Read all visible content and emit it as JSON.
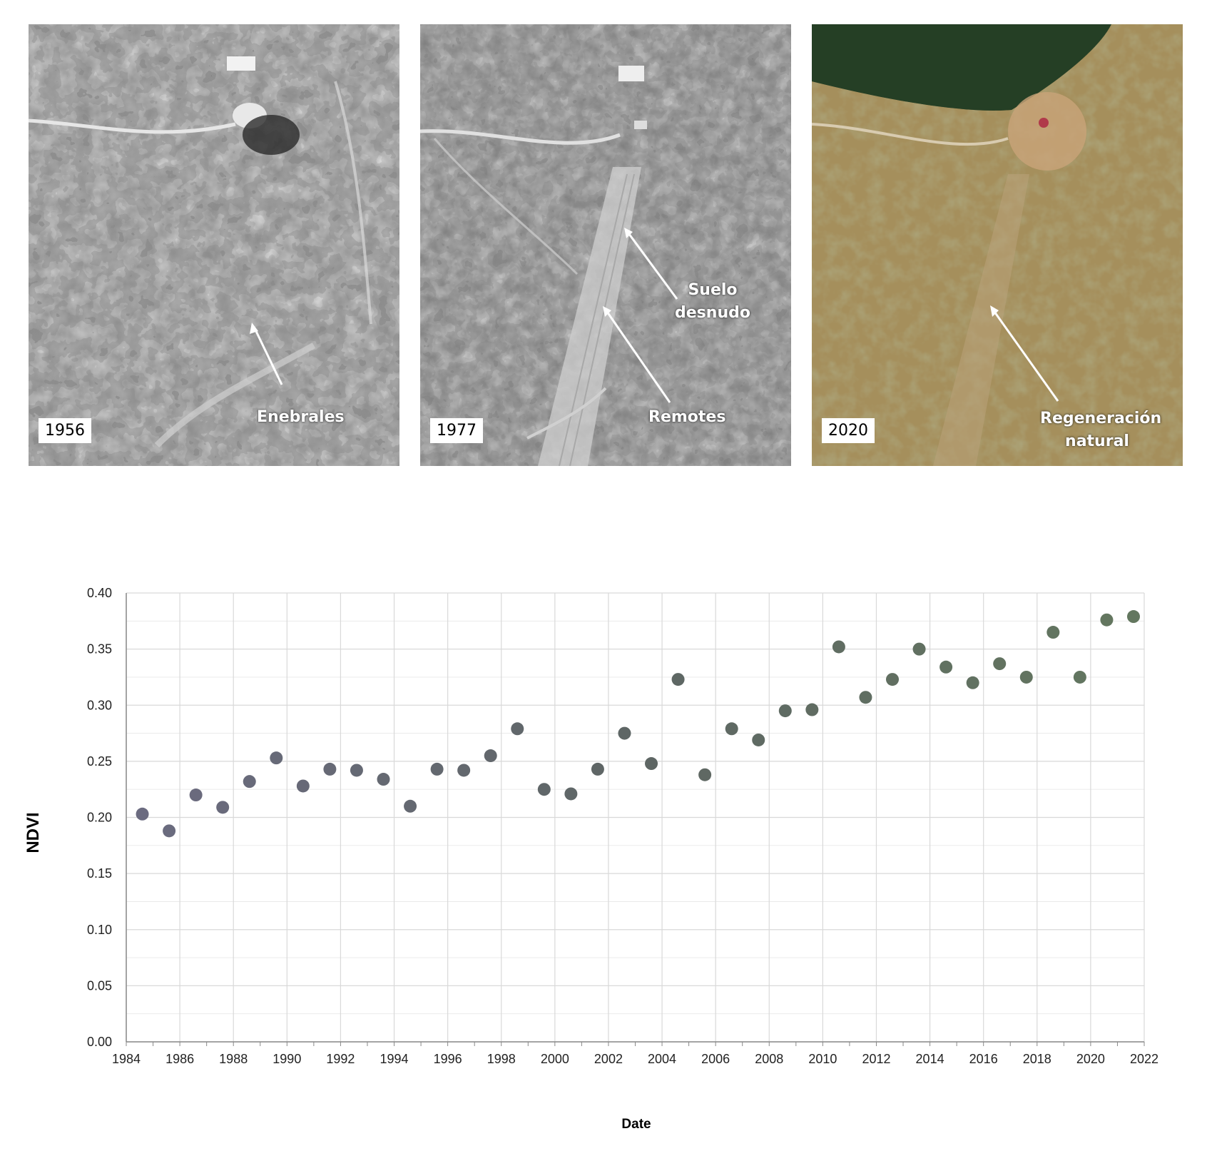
{
  "photos": [
    {
      "year": "1956",
      "annotations": [
        "Enebrales"
      ]
    },
    {
      "year": "1977",
      "annotations": [
        "Suelo desnudo",
        "Remotes"
      ]
    },
    {
      "year": "2020",
      "annotations": [
        "Regeneración natural"
      ]
    }
  ],
  "colors": {
    "point_early": "#6b6b80",
    "point_mid": "#5e6664",
    "point_late": "#63775f",
    "grid": "#d9d9d9",
    "axis": "#888888"
  },
  "chart_data": {
    "type": "scatter",
    "title": "",
    "xlabel": "Date",
    "ylabel": "NDVI",
    "xlim": [
      1984,
      2022
    ],
    "ylim": [
      0.0,
      0.4
    ],
    "grid": true,
    "x_ticks": [
      "1984",
      "1986",
      "1988",
      "1990",
      "1992",
      "1994",
      "1996",
      "1998",
      "2000",
      "2002",
      "2004",
      "2006",
      "2008",
      "2010",
      "2012",
      "2014",
      "2016",
      "2018",
      "2020",
      "2022"
    ],
    "y_ticks": [
      "0.00",
      "0.05",
      "0.10",
      "0.15",
      "0.20",
      "0.25",
      "0.30",
      "0.35",
      "0.40"
    ],
    "x": [
      1984.6,
      1985.6,
      1986.6,
      1987.6,
      1988.6,
      1989.6,
      1990.6,
      1991.6,
      1992.6,
      1993.6,
      1994.6,
      1995.6,
      1996.6,
      1997.6,
      1998.6,
      1999.6,
      2000.6,
      2001.6,
      2002.6,
      2003.6,
      2004.6,
      2005.6,
      2006.6,
      2007.6,
      2008.6,
      2009.6,
      2010.6,
      2011.6,
      2012.6,
      2013.6,
      2014.6,
      2015.6,
      2016.6,
      2017.6,
      2018.6,
      2019.6,
      2020.6,
      2021.6
    ],
    "y": [
      0.203,
      0.188,
      0.22,
      0.209,
      0.232,
      0.253,
      0.228,
      0.243,
      0.242,
      0.234,
      0.21,
      0.243,
      0.242,
      0.255,
      0.279,
      0.225,
      0.221,
      0.243,
      0.275,
      0.248,
      0.323,
      0.238,
      0.279,
      0.269,
      0.295,
      0.296,
      0.352,
      0.307,
      0.323,
      0.35,
      0.334,
      0.32,
      0.337,
      0.325,
      0.365,
      0.325,
      0.376,
      0.379
    ]
  }
}
